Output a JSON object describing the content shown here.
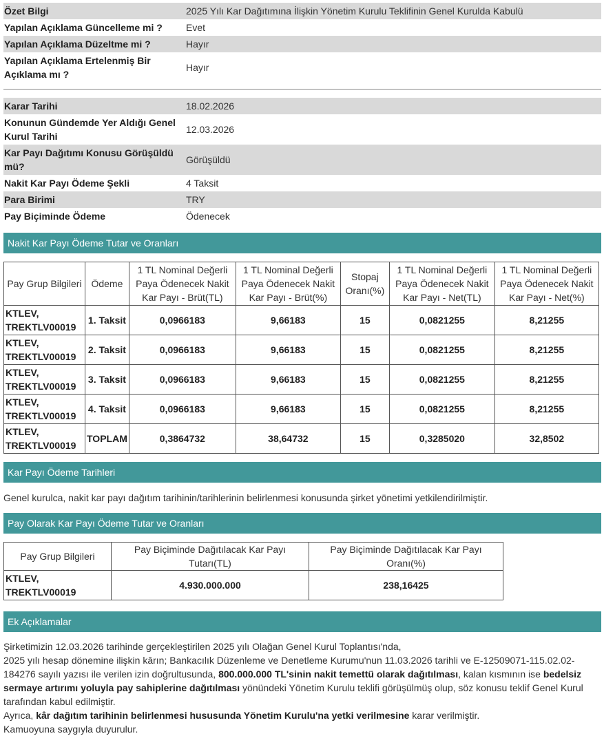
{
  "info1": [
    {
      "label": "Özet Bilgi",
      "value": "2025 Yılı Kar Dağıtımına İlişkin Yönetim Kurulu Teklifinin Genel Kurulda Kabulü"
    },
    {
      "label": "Yapılan Açıklama Güncelleme mi ?",
      "value": "Evet"
    },
    {
      "label": "Yapılan Açıklama Düzeltme mi ?",
      "value": "Hayır"
    },
    {
      "label": "Yapılan Açıklama Ertelenmiş Bir Açıklama mı ?",
      "value": "Hayır"
    }
  ],
  "info2": [
    {
      "label": "Karar Tarihi",
      "value": "18.02.2026"
    },
    {
      "label": "Konunun Gündemde Yer Aldığı Genel Kurul Tarihi",
      "value": "12.03.2026"
    },
    {
      "label": "Kar Payı Dağıtımı Konusu Görüşüldü mü?",
      "value": "Görüşüldü"
    },
    {
      "label": "Nakit Kar Payı Ödeme Şekli",
      "value": "4 Taksit"
    },
    {
      "label": "Para Birimi",
      "value": "TRY"
    },
    {
      "label": "Pay Biçiminde Ödeme",
      "value": "Ödenecek"
    }
  ],
  "cash": {
    "title": "Nakit Kar Payı Ödeme Tutar ve Oranları",
    "headers": [
      "Pay Grup Bilgileri",
      "Ödeme",
      "1 TL Nominal Değerli Paya Ödenecek Nakit Kar Payı - Brüt(TL)",
      "1 TL Nominal Değerli Paya Ödenecek Nakit Kar Payı - Brüt(%)",
      "Stopaj Oranı(%)",
      "1 TL Nominal Değerli Paya Ödenecek Nakit Kar Payı - Net(TL)",
      "1 TL Nominal Değerli Paya Ödenecek Nakit Kar Payı - Net(%)"
    ],
    "rows": [
      [
        "KTLEV, TREKTLV00019",
        "1. Taksit",
        "0,0966183",
        "9,66183",
        "15",
        "0,0821255",
        "8,21255"
      ],
      [
        "KTLEV, TREKTLV00019",
        "2. Taksit",
        "0,0966183",
        "9,66183",
        "15",
        "0,0821255",
        "8,21255"
      ],
      [
        "KTLEV, TREKTLV00019",
        "3. Taksit",
        "0,0966183",
        "9,66183",
        "15",
        "0,0821255",
        "8,21255"
      ],
      [
        "KTLEV, TREKTLV00019",
        "4. Taksit",
        "0,0966183",
        "9,66183",
        "15",
        "0,0821255",
        "8,21255"
      ],
      [
        "KTLEV, TREKTLV00019",
        "TOPLAM",
        "0,3864732",
        "38,64732",
        "15",
        "0,3285020",
        "32,8502"
      ]
    ]
  },
  "dates": {
    "title": "Kar Payı Ödeme Tarihleri",
    "text": "Genel kurulca, nakit kar payı dağıtım tarihinin/tarihlerinin belirlenmesi konusunda şirket yönetimi yetkilendirilmiştir."
  },
  "share": {
    "title": "Pay Olarak Kar Payı Ödeme Tutar ve Oranları",
    "headers": [
      "Pay Grup Bilgileri",
      "Pay Biçiminde Dağıtılacak Kar Payı Tutarı(TL)",
      "Pay Biçiminde Dağıtılacak Kar Payı Oranı(%)"
    ],
    "rows": [
      [
        "KTLEV, TREKTLV00019",
        "4.930.000.000",
        "238,16425"
      ]
    ]
  },
  "notes": {
    "title": "Ek Açıklamalar",
    "line1": "Şirketimizin 12.03.2026 tarihinde gerçekleştirilen 2025 yılı Olağan Genel Kurul Toplantısı'nda,",
    "p2a": "2025 yılı hesap dönemine ilişkin kârın; Bankacılık Düzenleme ve Denetleme Kurumu'nun 11.03.2026 tarihli ve E-12509071-115.02.02-184276 sayılı yazısı ile verilen izin doğrultusunda, ",
    "p2b": "800.000.000 TL'sinin nakit temettü olarak dağıtılması",
    "p2c": ", kalan kısmının ise ",
    "p2d": "bedelsiz sermaye artırımı yoluyla pay sahiplerine dağıtılması",
    "p2e": " yönündeki Yönetim Kurulu teklifi görüşülmüş olup, söz konusu teklif Genel Kurul tarafından kabul edilmiştir.",
    "p3a": "Ayrıca, ",
    "p3b": "kâr dağıtım tarihinin belirlenmesi hususunda Yönetim Kurulu'na yetki verilmesine",
    "p3c": " karar verilmiştir.",
    "line4": "Kamuoyuna saygıyla duyurulur."
  },
  "colors": {
    "section_header": "#42989a",
    "row_gray": "#d9d9d9"
  }
}
